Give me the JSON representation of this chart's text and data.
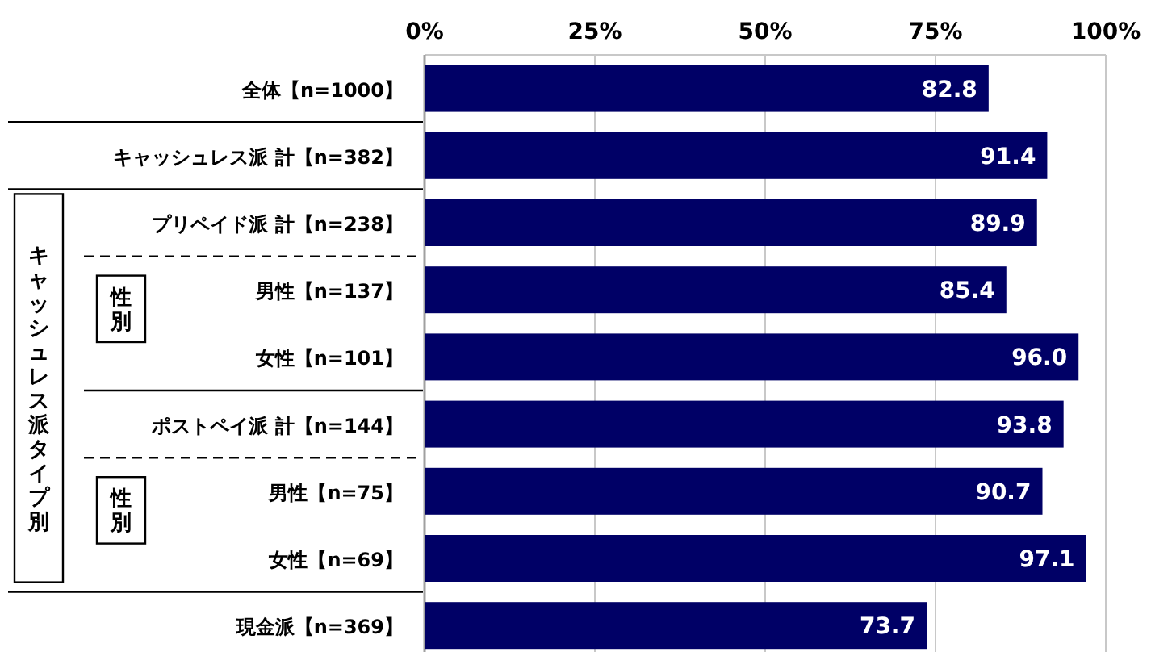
{
  "chart_data": {
    "type": "bar",
    "orientation": "horizontal",
    "categories": [
      "全体【n=1000】",
      "キャッシュレス派 計【n=382】",
      "プリペイド派 計【n=238】",
      "男性【n=137】",
      "女性【n=101】",
      "ポストペイ派 計【n=144】",
      "男性【n=75】",
      "女性【n=69】",
      "現金派【n=369】"
    ],
    "values": [
      82.8,
      91.4,
      89.9,
      85.4,
      96.0,
      93.8,
      90.7,
      97.1,
      73.7
    ],
    "value_labels": [
      "82.8",
      "91.4",
      "89.9",
      "85.4",
      "96.0",
      "93.8",
      "90.7",
      "97.1",
      "73.7"
    ],
    "color": "#000066",
    "xlim": [
      0,
      100
    ],
    "xticks": [
      {
        "value": 0,
        "label": "0%"
      },
      {
        "value": 25,
        "label": "25%"
      },
      {
        "value": 50,
        "label": "50%"
      },
      {
        "value": 75,
        "label": "75%"
      },
      {
        "value": 100,
        "label": "100%"
      }
    ],
    "grid": "x",
    "annotations": [
      "キャッシュレス派タイプ別",
      "性別",
      "性別"
    ]
  }
}
